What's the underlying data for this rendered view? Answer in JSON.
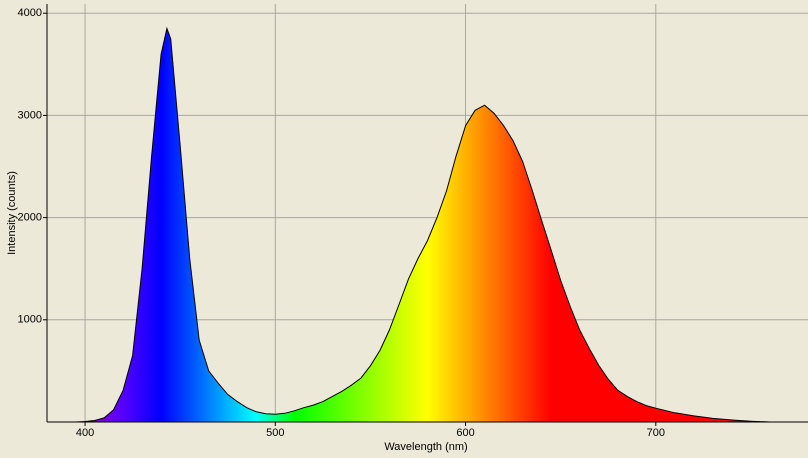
{
  "chart_data": {
    "type": "area",
    "xlabel": "Wavelength (nm)",
    "ylabel": "Intensity (counts)",
    "x": [
      395,
      400,
      405,
      410,
      415,
      420,
      425,
      430,
      435,
      440,
      443,
      445,
      450,
      455,
      460,
      465,
      470,
      475,
      480,
      485,
      490,
      495,
      500,
      505,
      510,
      515,
      520,
      525,
      530,
      535,
      540,
      545,
      550,
      555,
      560,
      565,
      570,
      575,
      580,
      585,
      590,
      595,
      600,
      605,
      610,
      615,
      620,
      625,
      630,
      635,
      640,
      645,
      650,
      655,
      660,
      665,
      670,
      675,
      680,
      685,
      690,
      695,
      700,
      710,
      720,
      730,
      740,
      750,
      760
    ],
    "y": [
      0,
      5,
      15,
      40,
      120,
      310,
      650,
      1500,
      2600,
      3600,
      3850,
      3750,
      2700,
      1600,
      800,
      500,
      380,
      270,
      200,
      140,
      100,
      80,
      75,
      85,
      110,
      140,
      165,
      200,
      250,
      300,
      360,
      430,
      550,
      700,
      900,
      1150,
      1400,
      1600,
      1775,
      2000,
      2260,
      2600,
      2900,
      3050,
      3100,
      3020,
      2900,
      2750,
      2550,
      2270,
      1970,
      1680,
      1385,
      1130,
      900,
      720,
      555,
      420,
      310,
      250,
      200,
      160,
      135,
      90,
      60,
      35,
      20,
      8,
      0
    ],
    "xlim": [
      380,
      780
    ],
    "ylim": [
      0,
      4090
    ],
    "xticks": [
      400,
      500,
      600,
      700
    ],
    "yticks": [
      1000,
      2000,
      3000,
      4000
    ],
    "grid": true,
    "outline_color": "#000000",
    "background": "#ece9d8"
  }
}
